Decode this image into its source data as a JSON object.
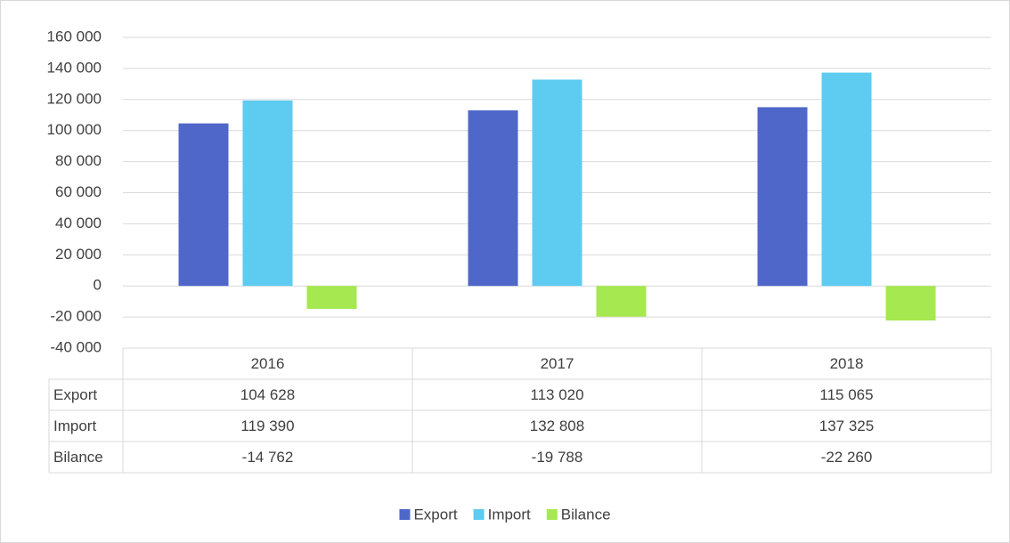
{
  "chart_data": {
    "type": "bar",
    "categories": [
      "2016",
      "2017",
      "2018"
    ],
    "series": [
      {
        "name": "Export",
        "color": "#4f67c9",
        "values": [
          104628,
          113020,
          115065
        ],
        "value_labels": [
          "104 628",
          "113 020",
          "115 065"
        ]
      },
      {
        "name": "Import",
        "color": "#5ecbf1",
        "values": [
          119390,
          132808,
          137325
        ],
        "value_labels": [
          "119 390",
          "132 808",
          "137 325"
        ]
      },
      {
        "name": "Bilance",
        "color": "#a6e84f",
        "values": [
          -14762,
          -19788,
          -22260
        ],
        "value_labels": [
          "-14 762",
          "-19 788",
          "-22 260"
        ]
      }
    ],
    "ylim": [
      -40000,
      160000
    ],
    "yticks": [
      {
        "value": -40000,
        "label": "-40 000"
      },
      {
        "value": -20000,
        "label": "-20 000"
      },
      0,
      {
        "value": 20000,
        "label": "20 000"
      },
      {
        "value": 40000,
        "label": "40 000"
      },
      {
        "value": 60000,
        "label": "60 000"
      },
      {
        "value": 80000,
        "label": "80 000"
      },
      {
        "value": 100000,
        "label": "100 000"
      },
      {
        "value": 120000,
        "label": "120 000"
      },
      {
        "value": 140000,
        "label": "140 000"
      },
      {
        "value": 160000,
        "label": "160 000"
      }
    ],
    "grid": true,
    "legend": "bottom",
    "data_table": true
  }
}
